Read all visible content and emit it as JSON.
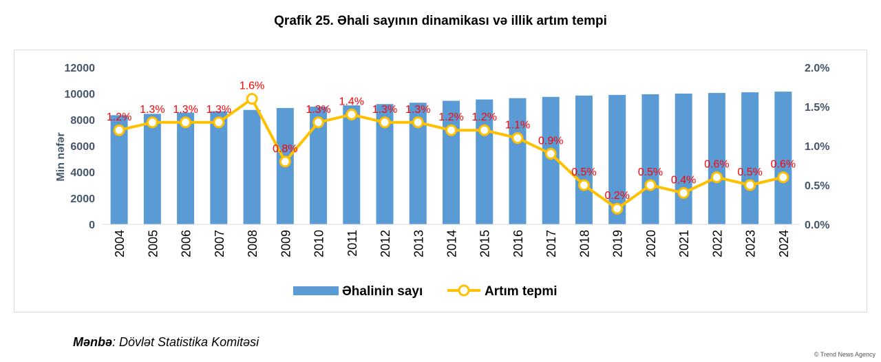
{
  "chart_data": {
    "type": "bar",
    "title": "Qrafik 25. Əhali sayının dinamikası və illik artım tempi",
    "categories": [
      "2004",
      "2005",
      "2006",
      "2007",
      "2008",
      "2009",
      "2010",
      "2011",
      "2012",
      "2013",
      "2014",
      "2015",
      "2016",
      "2017",
      "2018",
      "2019",
      "2020",
      "2021",
      "2022",
      "2023",
      "2024"
    ],
    "series": [
      {
        "name": "Əhalinin sayı",
        "kind": "bar",
        "axis": "left",
        "color": "#5b9bd5",
        "values": [
          8350,
          8450,
          8550,
          8650,
          8750,
          8900,
          9000,
          9100,
          9200,
          9300,
          9450,
          9550,
          9650,
          9750,
          9850,
          9900,
          9950,
          10000,
          10050,
          10100,
          10150
        ]
      },
      {
        "name": "Artım tepmi",
        "kind": "line",
        "axis": "right",
        "color": "#ffc000",
        "values": [
          1.2,
          1.3,
          1.3,
          1.3,
          1.6,
          0.8,
          1.3,
          1.4,
          1.3,
          1.3,
          1.2,
          1.2,
          1.1,
          0.9,
          0.5,
          0.2,
          0.5,
          0.4,
          0.6,
          0.5,
          0.6
        ],
        "labels": [
          "1.2%",
          "1.3%",
          "1.3%",
          "1.3%",
          "1.6%",
          "0.8%",
          "1.3%",
          "1.4%",
          "1.3%",
          "1.3%",
          "1.2%",
          "1.2%",
          "1.1%",
          "0.9%",
          "0.5%",
          "0.2%",
          "0.5%",
          "0.4%",
          "0.6%",
          "0.5%",
          "0.6%"
        ],
        "label_color": "#ff0000"
      }
    ],
    "ylabel": "Min nəfər",
    "ylim": [
      0,
      12000
    ],
    "yticks": [
      "0",
      "2000",
      "4000",
      "6000",
      "8000",
      "10000",
      "12000"
    ],
    "y2lim": [
      0,
      2.0
    ],
    "y2ticks": [
      "0.0%",
      "0.5%",
      "1.0%",
      "1.5%",
      "2.0%"
    ],
    "grid": false,
    "legend_position": "bottom",
    "axis_text_color": "#44546a"
  },
  "source": {
    "label": "Mənbə",
    "text": ": Dövlət Statistika Komitəsi"
  },
  "watermark": "© Trend News Agency"
}
